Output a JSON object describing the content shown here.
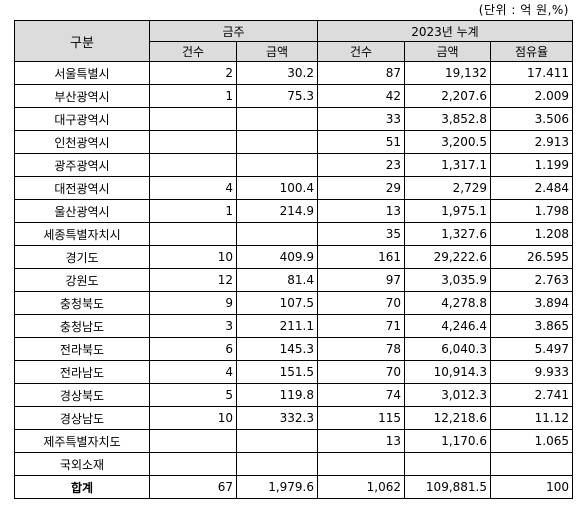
{
  "unit_note": "(단위 : 억 원,%)",
  "header": {
    "category": "구분",
    "group1": "금주",
    "group2": "2023년 누계",
    "cols": [
      "건수",
      "금액",
      "건수",
      "금액",
      "점유율"
    ]
  },
  "rows": [
    {
      "name": "서울특별시",
      "w_count": "2",
      "w_amount": "30.2",
      "y_count": "87",
      "y_amount": "19,132",
      "share": "17.411"
    },
    {
      "name": "부산광역시",
      "w_count": "1",
      "w_amount": "75.3",
      "y_count": "42",
      "y_amount": "2,207.6",
      "share": "2.009"
    },
    {
      "name": "대구광역시",
      "w_count": "",
      "w_amount": "",
      "y_count": "33",
      "y_amount": "3,852.8",
      "share": "3.506"
    },
    {
      "name": "인천광역시",
      "w_count": "",
      "w_amount": "",
      "y_count": "51",
      "y_amount": "3,200.5",
      "share": "2.913"
    },
    {
      "name": "광주광역시",
      "w_count": "",
      "w_amount": "",
      "y_count": "23",
      "y_amount": "1,317.1",
      "share": "1.199"
    },
    {
      "name": "대전광역시",
      "w_count": "4",
      "w_amount": "100.4",
      "y_count": "29",
      "y_amount": "2,729",
      "share": "2.484"
    },
    {
      "name": "울산광역시",
      "w_count": "1",
      "w_amount": "214.9",
      "y_count": "13",
      "y_amount": "1,975.1",
      "share": "1.798"
    },
    {
      "name": "세종특별자치시",
      "w_count": "",
      "w_amount": "",
      "y_count": "35",
      "y_amount": "1,327.6",
      "share": "1.208"
    },
    {
      "name": "경기도",
      "w_count": "10",
      "w_amount": "409.9",
      "y_count": "161",
      "y_amount": "29,222.6",
      "share": "26.595"
    },
    {
      "name": "강원도",
      "w_count": "12",
      "w_amount": "81.4",
      "y_count": "97",
      "y_amount": "3,035.9",
      "share": "2.763"
    },
    {
      "name": "충청북도",
      "w_count": "9",
      "w_amount": "107.5",
      "y_count": "70",
      "y_amount": "4,278.8",
      "share": "3.894"
    },
    {
      "name": "충청남도",
      "w_count": "3",
      "w_amount": "211.1",
      "y_count": "71",
      "y_amount": "4,246.4",
      "share": "3.865"
    },
    {
      "name": "전라북도",
      "w_count": "6",
      "w_amount": "145.3",
      "y_count": "78",
      "y_amount": "6,040.3",
      "share": "5.497"
    },
    {
      "name": "전라남도",
      "w_count": "4",
      "w_amount": "151.5",
      "y_count": "70",
      "y_amount": "10,914.3",
      "share": "9.933"
    },
    {
      "name": "경상북도",
      "w_count": "5",
      "w_amount": "119.8",
      "y_count": "74",
      "y_amount": "3,012.3",
      "share": "2.741"
    },
    {
      "name": "경상남도",
      "w_count": "10",
      "w_amount": "332.3",
      "y_count": "115",
      "y_amount": "12,218.6",
      "share": "11.12"
    },
    {
      "name": "제주특별자치도",
      "w_count": "",
      "w_amount": "",
      "y_count": "13",
      "y_amount": "1,170.6",
      "share": "1.065"
    },
    {
      "name": "국외소재",
      "w_count": "",
      "w_amount": "",
      "y_count": "",
      "y_amount": "",
      "share": ""
    }
  ],
  "total": {
    "name": "합계",
    "w_count": "67",
    "w_amount": "1,979.6",
    "y_count": "1,062",
    "y_amount": "109,881.5",
    "share": "100"
  }
}
